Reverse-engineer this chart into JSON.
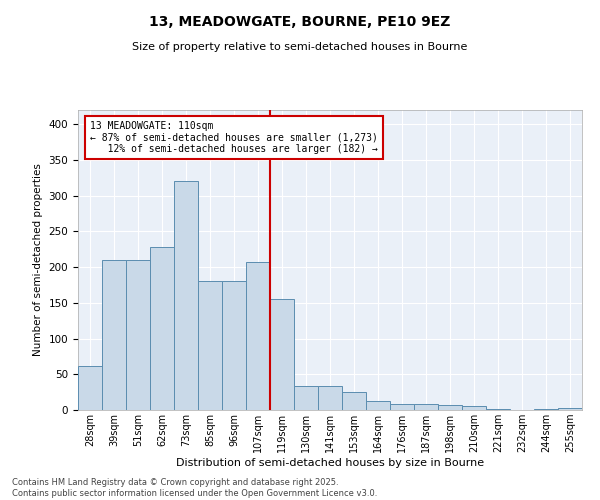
{
  "title": "13, MEADOWGATE, BOURNE, PE10 9EZ",
  "subtitle": "Size of property relative to semi-detached houses in Bourne",
  "xlabel": "Distribution of semi-detached houses by size in Bourne",
  "ylabel": "Number of semi-detached properties",
  "bin_labels": [
    "28sqm",
    "39sqm",
    "51sqm",
    "62sqm",
    "73sqm",
    "85sqm",
    "96sqm",
    "107sqm",
    "119sqm",
    "130sqm",
    "141sqm",
    "153sqm",
    "164sqm",
    "176sqm",
    "187sqm",
    "198sqm",
    "210sqm",
    "221sqm",
    "232sqm",
    "244sqm",
    "255sqm"
  ],
  "bar_heights": [
    62,
    210,
    210,
    228,
    320,
    180,
    180,
    207,
    155,
    34,
    33,
    25,
    13,
    9,
    9,
    7,
    5,
    2,
    0,
    2,
    3
  ],
  "bar_color": "#c9d9e8",
  "bar_edge_color": "#5b8db0",
  "vline_label": "13 MEADOWGATE: 110sqm",
  "pct_smaller": 87,
  "n_smaller": 1273,
  "pct_larger": 12,
  "n_larger": 182,
  "annotation_box_color": "#ffffff",
  "annotation_box_edge": "#cc0000",
  "vline_color": "#cc0000",
  "ylim": [
    0,
    420
  ],
  "yticks": [
    0,
    50,
    100,
    150,
    200,
    250,
    300,
    350,
    400
  ],
  "background_color": "#eaf0f8",
  "footer1": "Contains HM Land Registry data © Crown copyright and database right 2025.",
  "footer2": "Contains public sector information licensed under the Open Government Licence v3.0."
}
